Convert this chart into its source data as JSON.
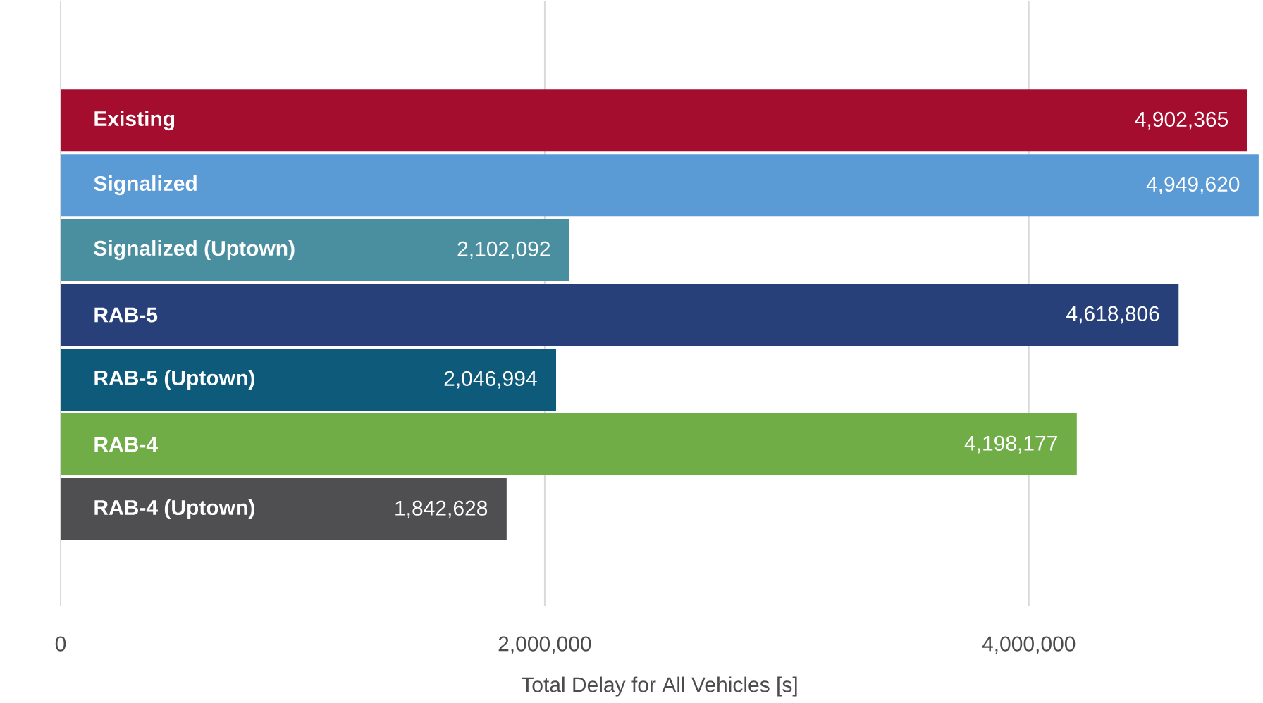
{
  "chart_data": {
    "type": "bar",
    "orientation": "horizontal",
    "xlabel": "Total Delay for All Vehicles [s]",
    "categories": [
      "Existing",
      "Signalized",
      "Signalized (Uptown)",
      "RAB-5",
      "RAB-5 (Uptown)",
      "RAB-4",
      "RAB-4 (Uptown)"
    ],
    "values": [
      4902365,
      4949620,
      2102092,
      4618806,
      2046994,
      4198177,
      1842628
    ],
    "value_labels": [
      "4,902,365",
      "4,949,620",
      "2,102,092",
      "4,618,806",
      "2,046,994",
      "4,198,177",
      "1,842,628"
    ],
    "colors": [
      "#a50d2f",
      "#5b9bd5",
      "#4a8fa0",
      "#28407a",
      "#0e5a7a",
      "#70ad47",
      "#4f4f51"
    ],
    "xticks": [
      {
        "value": 0,
        "label": "0"
      },
      {
        "value": 2000000,
        "label": "2,000,000"
      },
      {
        "value": 4000000,
        "label": "4,000,000"
      }
    ],
    "xlim": [
      0,
      4950000
    ],
    "grid": "x"
  }
}
